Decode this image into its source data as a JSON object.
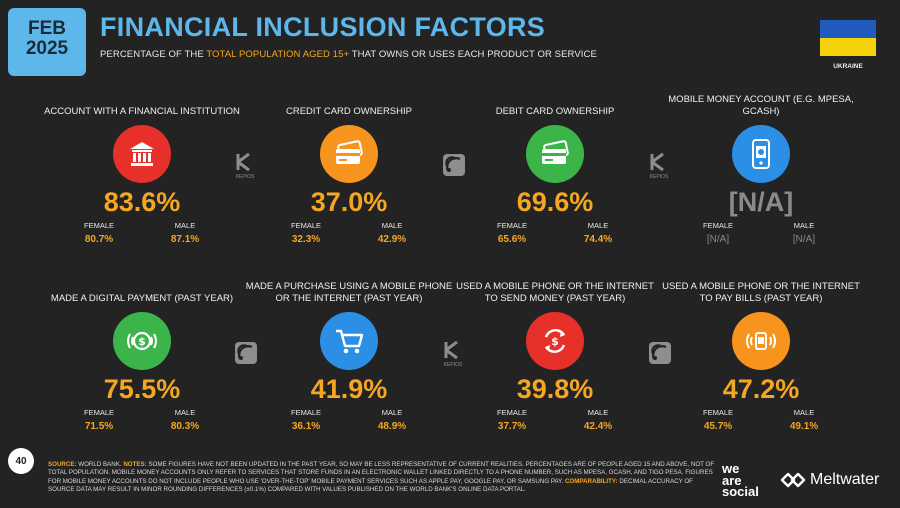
{
  "header": {
    "month": "FEB",
    "year": "2025",
    "title": "FINANCIAL INCLUSION FACTORS",
    "subtitle_pre": "PERCENTAGE OF THE ",
    "subtitle_highlight": "TOTAL POPULATION AGED 15+",
    "subtitle_post": " THAT OWNS OR USES EACH PRODUCT OR SERVICE",
    "country": "UKRAINE",
    "flag_colors": [
      "#1f5bbf",
      "#f5d20a"
    ]
  },
  "gender_labels": {
    "female": "FEMALE",
    "male": "MALE"
  },
  "cells": [
    {
      "label": "ACCOUNT WITH A FINANCIAL INSTITUTION",
      "icon": "bank-icon",
      "color": "#e8302a",
      "value": "83.6%",
      "female": "80.7%",
      "male": "87.1%"
    },
    {
      "label": "CREDIT CARD OWNERSHIP",
      "icon": "credit-card-icon",
      "color": "#f7941d",
      "value": "37.0%",
      "female": "32.3%",
      "male": "42.9%"
    },
    {
      "label": "DEBIT CARD OWNERSHIP",
      "icon": "debit-card-icon",
      "color": "#3bb54a",
      "value": "69.6%",
      "female": "65.6%",
      "male": "74.4%"
    },
    {
      "label": "MOBILE MONEY ACCOUNT (E.G. MPESA, GCASH)",
      "icon": "mobile-money-icon",
      "color": "#2b8fe6",
      "value": "[N/A]",
      "female": "[N/A]",
      "male": "[N/A]"
    },
    {
      "label": "MADE A DIGITAL PAYMENT (PAST YEAR)",
      "icon": "digital-payment-icon",
      "color": "#3bb54a",
      "value": "75.5%",
      "female": "71.5%",
      "male": "80.3%"
    },
    {
      "label": "MADE A PURCHASE USING A MOBILE PHONE OR THE INTERNET (PAST YEAR)",
      "icon": "shopping-cart-icon",
      "color": "#2b8fe6",
      "value": "41.9%",
      "female": "36.1%",
      "male": "48.9%"
    },
    {
      "label": "USED A MOBILE PHONE OR THE INTERNET TO SEND MONEY (PAST YEAR)",
      "icon": "send-money-icon",
      "color": "#e8302a",
      "value": "39.8%",
      "female": "37.7%",
      "male": "42.4%"
    },
    {
      "label": "USED A MOBILE PHONE OR THE INTERNET TO PAY BILLS (PAST YEAR)",
      "icon": "pay-bills-icon",
      "color": "#f7941d",
      "value": "47.2%",
      "female": "45.7%",
      "male": "49.1%"
    }
  ],
  "watermark": "KEPIOS",
  "footer": {
    "source_label": "SOURCE:",
    "source_text": " WORLD BANK. ",
    "notes_label": "NOTES:",
    "notes_text": " SOME FIGURES HAVE NOT BEEN UPDATED IN THE PAST YEAR, SO MAY BE LESS REPRESENTATIVE OF CURRENT REALITIES. PERCENTAGES ARE OF PEOPLE AGED 15 AND ABOVE, NOT OF TOTAL POPULATION. MOBILE MONEY ACCOUNTS ONLY REFER TO SERVICES THAT STORE FUNDS IN AN ELECTRONIC WALLET LINKED DIRECTLY TO A PHONE NUMBER, SUCH AS MPESA, GCASH, AND TIGO PESA. FIGURES FOR MOBILE MONEY ACCOUNTS DO NOT INCLUDE PEOPLE WHO USE 'OVER-THE-TOP' MOBILE PAYMENT SERVICES SUCH AS APPLE PAY, GOOGLE PAY, OR SAMSUNG PAY. ",
    "comparability_label": "COMPARABILITY:",
    "comparability_text": " DECIMAL ACCURACY OF SOURCE DATA MAY RESULT IN MINOR ROUNDING DIFFERENCES (±0.1%) COMPARED WITH VALUES PUBLISHED ON THE WORLD BANK'S ONLINE DATA PORTAL."
  },
  "page_number": "40",
  "brand_1_line1": "we",
  "brand_1_line2": "are",
  "brand_1_line3": "social",
  "brand_2": "Meltwater"
}
